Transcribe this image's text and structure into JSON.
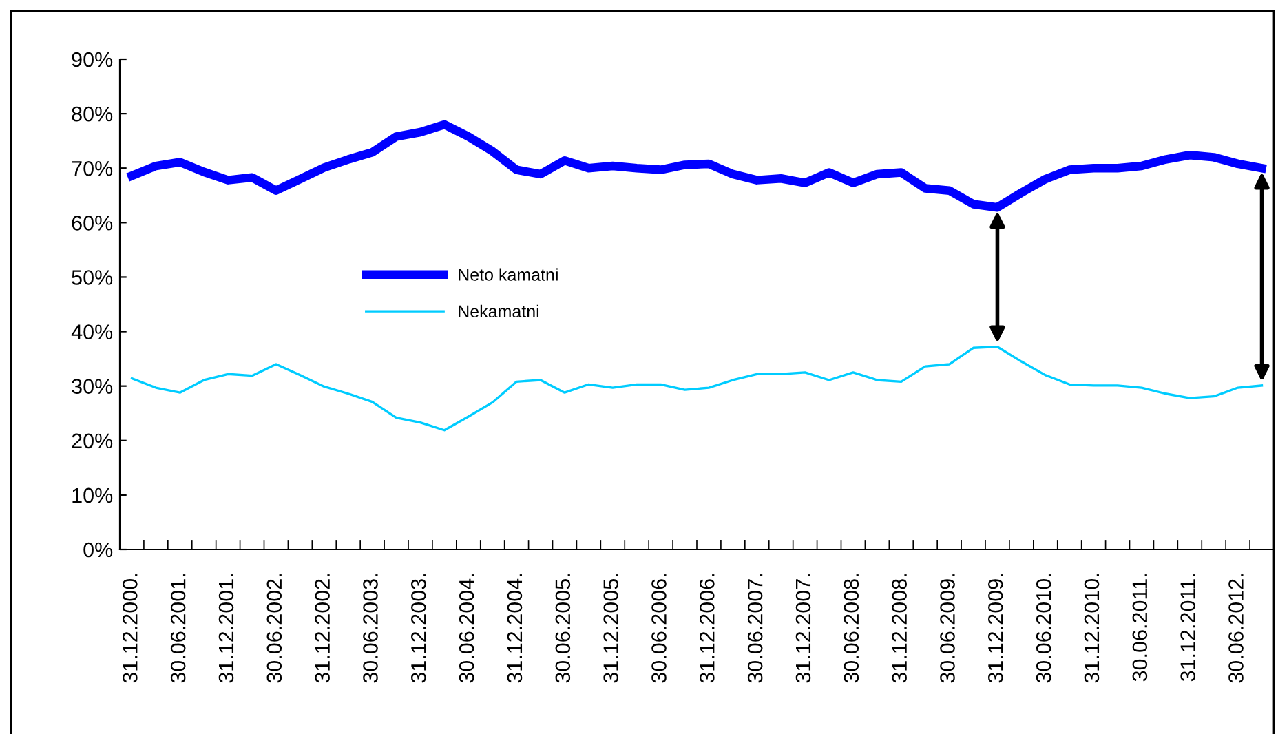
{
  "chart_data": {
    "type": "line",
    "categories": [
      "31.12.2000.",
      null,
      "30.06.2001.",
      null,
      "31.12.2001.",
      null,
      "30.06.2002.",
      null,
      "31.12.2002.",
      null,
      "30.06.2003.",
      null,
      "31.12.2003.",
      null,
      "30.06.2004.",
      null,
      "31.12.2004.",
      null,
      "30.06.2005.",
      null,
      "31.12.2005.",
      null,
      "30.06.2006.",
      null,
      "31.12.2006.",
      null,
      "30.06.2007.",
      null,
      "31.12.2007.",
      null,
      "30.06.2008.",
      null,
      "31.12.2008.",
      null,
      "30.06.2009.",
      null,
      "31.12.2009.",
      null,
      "30.06.2010.",
      null,
      "31.12.2010.",
      null,
      "30.06.2011.",
      null,
      "31.12.2011.",
      null,
      "30.06.2012.",
      null
    ],
    "series": [
      {
        "name": "Neto kamatni",
        "color": "#0000ff",
        "values": [
          68.6,
          70.4,
          71.1,
          69.3,
          67.8,
          68.3,
          65.9,
          68.0,
          70.1,
          71.6,
          72.9,
          75.8,
          76.6,
          78.0,
          75.8,
          73.1,
          69.7,
          68.9,
          71.4,
          70.0,
          70.4,
          70.0,
          69.7,
          70.6,
          70.8,
          68.9,
          67.8,
          68.1,
          67.3,
          69.2,
          67.3,
          68.9,
          69.2,
          66.3,
          65.9,
          63.4,
          62.8,
          65.5,
          68.0,
          69.7,
          70.0,
          70.0,
          70.4,
          71.6,
          72.4,
          72.0,
          70.8,
          70.0
        ]
      },
      {
        "name": "Nekamatni",
        "color": "#00ccff",
        "values": [
          31.4,
          29.7,
          28.8,
          31.1,
          32.2,
          31.9,
          34.0,
          32.0,
          29.9,
          28.6,
          27.1,
          24.2,
          23.3,
          21.9,
          24.4,
          27.0,
          30.8,
          31.1,
          28.8,
          30.3,
          29.7,
          30.3,
          30.3,
          29.3,
          29.7,
          31.1,
          32.2,
          32.2,
          32.5,
          31.1,
          32.5,
          31.1,
          30.8,
          33.6,
          34.0,
          37.0,
          37.2,
          34.5,
          32.0,
          30.3,
          30.1,
          30.1,
          29.7,
          28.6,
          27.8,
          28.1,
          29.7,
          30.1
        ]
      }
    ],
    "ylim": [
      0,
      90
    ],
    "yticks": [
      {
        "value": 0,
        "label": "0%"
      },
      {
        "value": 10,
        "label": "10%"
      },
      {
        "value": 20,
        "label": "20%"
      },
      {
        "value": 30,
        "label": "30%"
      },
      {
        "value": 40,
        "label": "40%"
      },
      {
        "value": 50,
        "label": "50%"
      },
      {
        "value": 60,
        "label": "60%"
      },
      {
        "value": 70,
        "label": "70%"
      },
      {
        "value": 80,
        "label": "80%"
      },
      {
        "value": 90,
        "label": "90%"
      }
    ],
    "grid": false,
    "legend": "center left",
    "marker": "none",
    "line_style": "solid"
  }
}
